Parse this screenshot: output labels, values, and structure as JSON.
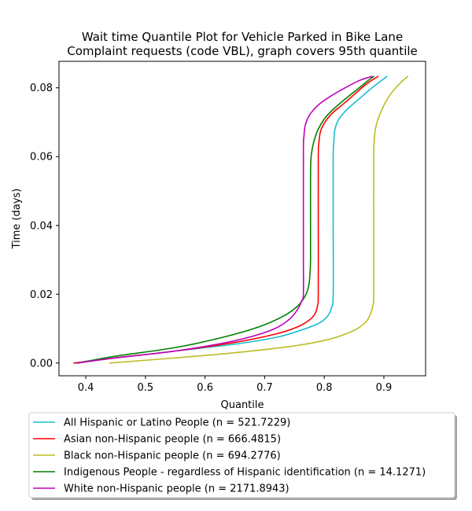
{
  "chart_data": {
    "type": "line",
    "title_line1": "Wait time Quantile Plot for Vehicle Parked in Bike Lane",
    "title_line2": "Complaint  requests (code VBL), graph covers 95th quantile",
    "xlabel": "Quantile",
    "ylabel": "Time (days)",
    "xlim": [
      0.355,
      0.97
    ],
    "ylim": [
      -0.0037,
      0.0877
    ],
    "xticks": [
      0.4,
      0.5,
      0.6,
      0.7,
      0.8,
      0.9
    ],
    "xtick_labels": [
      "0.4",
      "0.5",
      "0.6",
      "0.7",
      "0.8",
      "0.9"
    ],
    "yticks": [
      0.0,
      0.02,
      0.04,
      0.06,
      0.08
    ],
    "ytick_labels": [
      "0.00",
      "0.02",
      "0.04",
      "0.06",
      "0.08"
    ],
    "grid": false,
    "legend_position": "below",
    "series": [
      {
        "name": "All Hispanic or Latino People (n = 521.7229)",
        "color": "#17becf",
        "x": [
          0.385,
          0.45,
          0.55,
          0.65,
          0.72,
          0.76,
          0.79,
          0.805,
          0.812,
          0.815,
          0.815,
          0.815,
          0.816,
          0.818,
          0.825,
          0.84,
          0.86,
          0.88,
          0.905
        ],
        "y": [
          0.0,
          0.0015,
          0.0035,
          0.0055,
          0.0075,
          0.0095,
          0.0115,
          0.0135,
          0.016,
          0.02,
          0.04,
          0.06,
          0.064,
          0.068,
          0.071,
          0.074,
          0.077,
          0.08,
          0.0833
        ]
      },
      {
        "name": "Asian non-Hispanic people (n = 666.4815)",
        "color": "#ff0000",
        "x": [
          0.38,
          0.45,
          0.55,
          0.65,
          0.72,
          0.755,
          0.775,
          0.785,
          0.789,
          0.79,
          0.79,
          0.79,
          0.791,
          0.795,
          0.81,
          0.83,
          0.85,
          0.87,
          0.89
        ],
        "y": [
          0.0,
          0.0015,
          0.0035,
          0.006,
          0.0085,
          0.0105,
          0.0125,
          0.0145,
          0.017,
          0.02,
          0.04,
          0.06,
          0.064,
          0.068,
          0.072,
          0.075,
          0.078,
          0.081,
          0.0833
        ]
      },
      {
        "name": "Black non-Hispanic people (n = 694.2776)",
        "color": "#bcbd22",
        "x": [
          0.44,
          0.55,
          0.65,
          0.75,
          0.81,
          0.85,
          0.87,
          0.878,
          0.882,
          0.883,
          0.883,
          0.883,
          0.884,
          0.887,
          0.895,
          0.905,
          0.915,
          0.928,
          0.94
        ],
        "y": [
          0.0,
          0.0015,
          0.003,
          0.005,
          0.007,
          0.0095,
          0.012,
          0.0145,
          0.017,
          0.02,
          0.04,
          0.06,
          0.065,
          0.069,
          0.073,
          0.0765,
          0.079,
          0.0815,
          0.0833
        ]
      },
      {
        "name": "Indigenous People - regardless of Hispanic identification (n = 14.1271)",
        "color": "#008000",
        "x": [
          0.385,
          0.45,
          0.55,
          0.63,
          0.69,
          0.73,
          0.755,
          0.768,
          0.774,
          0.776,
          0.777,
          0.777,
          0.777,
          0.778,
          0.782,
          0.79,
          0.805,
          0.83,
          0.855,
          0.875,
          0.883
        ],
        "y": [
          0.0,
          0.002,
          0.0045,
          0.0075,
          0.0105,
          0.0135,
          0.0165,
          0.0195,
          0.0225,
          0.026,
          0.03,
          0.04,
          0.055,
          0.06,
          0.064,
          0.068,
          0.072,
          0.076,
          0.0795,
          0.0823,
          0.0833
        ]
      },
      {
        "name": "White non-Hispanic people (n = 2171.8943)",
        "color": "#bf00bf",
        "x": [
          0.385,
          0.45,
          0.55,
          0.65,
          0.71,
          0.74,
          0.755,
          0.762,
          0.765,
          0.765,
          0.765,
          0.765,
          0.766,
          0.768,
          0.775,
          0.79,
          0.81,
          0.835,
          0.86,
          0.88
        ],
        "y": [
          0.0,
          0.0015,
          0.0035,
          0.0065,
          0.0095,
          0.0125,
          0.0155,
          0.018,
          0.02,
          0.03,
          0.05,
          0.063,
          0.066,
          0.069,
          0.072,
          0.075,
          0.0775,
          0.08,
          0.0822,
          0.0833
        ]
      }
    ]
  }
}
